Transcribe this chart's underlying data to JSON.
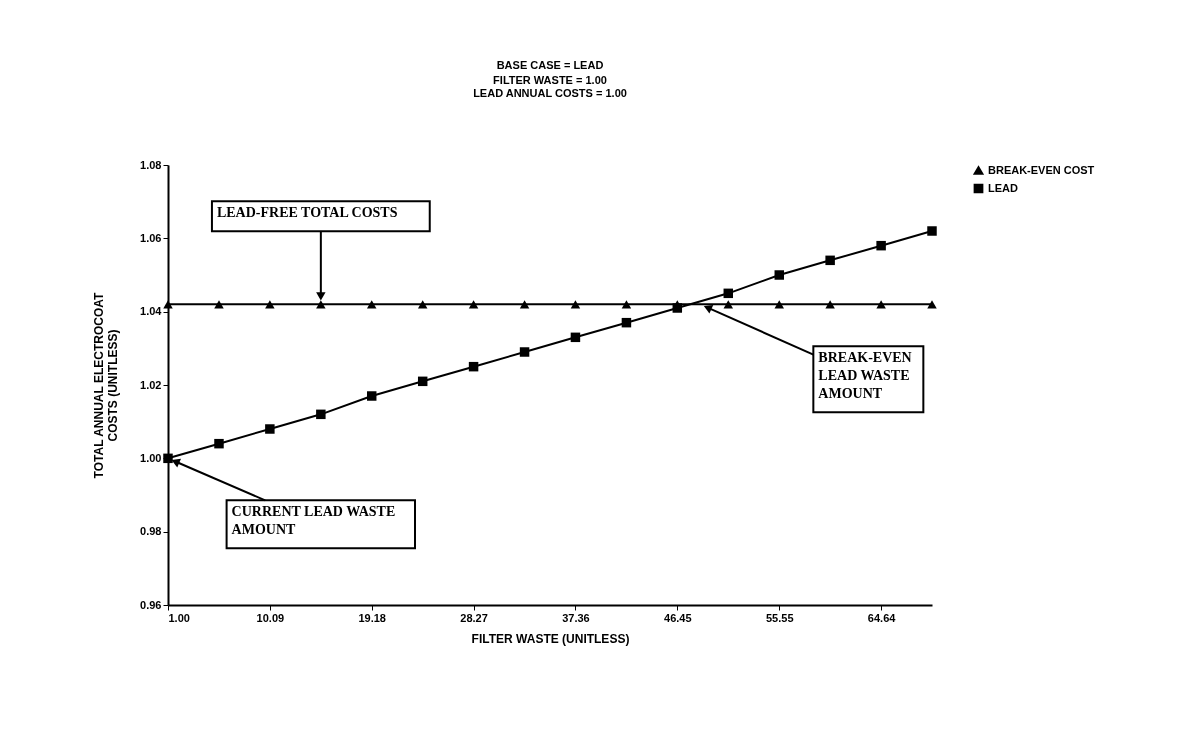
{
  "chart_data": {
    "type": "line",
    "title": "BASE CASE = LEAD",
    "subtitle": "FILTER WASTE = 1.00\nLEAD ANNUAL COSTS = 1.00",
    "xlabel": "FILTER WASTE (UNITLESS)",
    "ylabel": "TOTAL ANNUAL ELECTROCOAT\nCOSTS (UNITLESS)",
    "x": [
      1.0,
      5.55,
      10.09,
      14.64,
      19.18,
      23.73,
      28.27,
      32.82,
      37.36,
      41.91,
      46.45,
      51.0,
      55.55,
      60.09,
      64.64,
      69.18
    ],
    "series": [
      {
        "name": "BREAK-EVEN COST",
        "color": "#000000",
        "marker": "triangle",
        "values": [
          1.042,
          1.042,
          1.042,
          1.042,
          1.042,
          1.042,
          1.042,
          1.042,
          1.042,
          1.042,
          1.042,
          1.042,
          1.042,
          1.042,
          1.042,
          1.042
        ]
      },
      {
        "name": "LEAD",
        "color": "#000000",
        "marker": "square",
        "values": [
          1.0,
          1.004,
          1.008,
          1.012,
          1.017,
          1.021,
          1.025,
          1.029,
          1.033,
          1.037,
          1.041,
          1.045,
          1.05,
          1.054,
          1.058,
          1.062
        ]
      }
    ],
    "xlim": [
      1.0,
      69.18
    ],
    "xticks": [
      {
        "value": 1,
        "label": "1.00"
      },
      10.09,
      19.18,
      28.27,
      37.36,
      46.45,
      55.55,
      64.64
    ],
    "ylim": [
      0.96,
      1.08
    ],
    "yticks": [
      0.96,
      0.98,
      {
        "value": 1,
        "label": "1.00"
      },
      1.02,
      1.04,
      1.06,
      1.08
    ],
    "annotations": [
      {
        "text": "LEAD-FREE TOTAL COSTS",
        "x": 14.64,
        "y": 1.042
      },
      {
        "text": "BREAK-EVEN\nLEAD WASTE\nAMOUNT",
        "x": 48.5,
        "y": 1.042
      },
      {
        "text": "CURRENT LEAD WASTE\nAMOUNT",
        "x": 1.0,
        "y": 1.0
      }
    ],
    "legend": "right",
    "grid": false,
    "line_style": "solid"
  }
}
